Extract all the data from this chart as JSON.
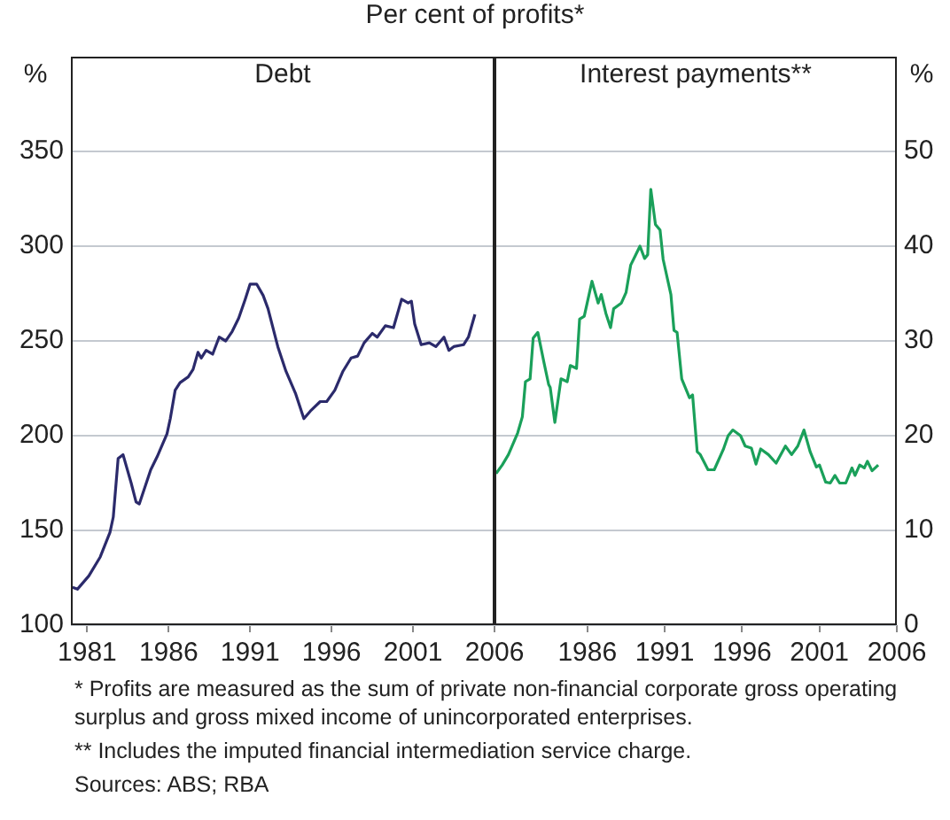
{
  "chart_data": [
    {
      "type": "line",
      "title": "Per cent of profits*",
      "subtitle": "Debt",
      "ylabel": "%",
      "xlim": [
        1980,
        2006
      ],
      "xticks": [
        1981,
        1986,
        1991,
        1996,
        2001,
        2006
      ],
      "ylim": [
        100,
        400
      ],
      "yticks": [
        100,
        150,
        200,
        250,
        300,
        350
      ],
      "grid": "y",
      "annotations": [
        "*   Profits are measured as the sum of private non-financial corporate gross operating surplus and gross mixed income of unincorporated enterprises.",
        "** Includes the imputed financial intermediation service charge.",
        "Sources: ABS; RBA"
      ],
      "series": [
        {
          "color": "#2b2a6b",
          "x": [
            1980.1,
            1980.4,
            1981.1,
            1981.8,
            1982.4,
            1982.6,
            1982.9,
            1983.2,
            1983.7,
            1984.0,
            1984.2,
            1984.9,
            1985.3,
            1985.9,
            1986.1,
            1986.4,
            1986.7,
            1987.2,
            1987.5,
            1987.8,
            1988.0,
            1988.3,
            1988.7,
            1989.1,
            1989.5,
            1989.9,
            1990.3,
            1990.7,
            1991.0,
            1991.4,
            1991.8,
            1992.1,
            1992.7,
            1993.2,
            1993.8,
            1994.3,
            1994.7,
            1995.3,
            1995.7,
            1996.2,
            1996.7,
            1997.2,
            1997.6,
            1998.0,
            1998.5,
            1998.8,
            1999.3,
            1999.8,
            2000.3,
            2000.7,
            2000.9,
            2001.1,
            2001.5,
            2002.0,
            2002.4,
            2002.9,
            2003.2,
            2003.5,
            2004.1,
            2004.4,
            2004.8
          ],
          "values": [
            120,
            119,
            126,
            136,
            149,
            157,
            188,
            190,
            175,
            165,
            164,
            182,
            189,
            201,
            209,
            224,
            228,
            231,
            235,
            244,
            241,
            245,
            243,
            252,
            250,
            255,
            262,
            272,
            280,
            280,
            274,
            267,
            247,
            234,
            222,
            209,
            213,
            218,
            218,
            224,
            234,
            241,
            242,
            249,
            254,
            252,
            258,
            257,
            272,
            270,
            271,
            259,
            248,
            249,
            247,
            252,
            245,
            247,
            248,
            252,
            264
          ]
        }
      ]
    },
    {
      "type": "line",
      "subtitle": "Interest payments**",
      "y2label": "%",
      "xlim": [
        1980,
        2006
      ],
      "xticks": [
        1986,
        1991,
        1996,
        2001,
        2006
      ],
      "y2lim": [
        0,
        60
      ],
      "y2ticks": [
        0,
        10,
        20,
        30,
        40,
        50
      ],
      "grid": "y",
      "series": [
        {
          "color": "#1aa05a",
          "axis": "y2",
          "x": [
            1980.1,
            1980.5,
            1980.9,
            1981.5,
            1981.8,
            1982.0,
            1982.3,
            1982.5,
            1982.8,
            1983.2,
            1983.5,
            1983.6,
            1983.9,
            1984.3,
            1984.7,
            1984.9,
            1985.3,
            1985.5,
            1985.8,
            1986.3,
            1986.7,
            1986.9,
            1987.2,
            1987.5,
            1987.7,
            1988.2,
            1988.5,
            1988.8,
            1989.1,
            1989.4,
            1989.7,
            1989.9,
            1990.1,
            1990.4,
            1990.7,
            1990.9,
            1991.4,
            1991.6,
            1991.8,
            1992.1,
            1992.6,
            1992.8,
            1993.1,
            1993.3,
            1993.8,
            1994.2,
            1994.8,
            1995.1,
            1995.4,
            1995.9,
            1996.2,
            1996.6,
            1996.9,
            1997.2,
            1997.7,
            1998.2,
            1998.8,
            1999.2,
            1999.6,
            2000.0,
            2000.4,
            2000.8,
            2001.0,
            2001.4,
            2001.7,
            2002.0,
            2002.3,
            2002.7,
            2003.1,
            2003.3,
            2003.6,
            2003.9,
            2004.1,
            2004.4,
            2004.8
          ],
          "values": [
            16.0,
            16.9,
            18.0,
            20.3,
            22.0,
            25.7,
            26.0,
            30.3,
            30.9,
            27.7,
            25.4,
            25.1,
            21.4,
            26.0,
            25.7,
            27.4,
            27.1,
            32.3,
            32.6,
            36.3,
            34.0,
            34.9,
            32.9,
            31.4,
            33.4,
            34.0,
            35.1,
            38.0,
            39.0,
            40.0,
            38.7,
            39.1,
            46.0,
            42.3,
            41.7,
            38.6,
            34.9,
            31.1,
            30.9,
            26.0,
            24.0,
            24.3,
            18.3,
            18.0,
            16.4,
            16.4,
            18.6,
            20.0,
            20.6,
            20.0,
            18.9,
            18.7,
            17.0,
            18.6,
            18.0,
            17.1,
            18.9,
            18.0,
            18.9,
            20.6,
            18.3,
            16.7,
            16.9,
            15.1,
            15.0,
            15.8,
            15.0,
            15.0,
            16.6,
            15.8,
            16.9,
            16.6,
            17.3,
            16.3,
            16.9
          ]
        }
      ]
    }
  ]
}
